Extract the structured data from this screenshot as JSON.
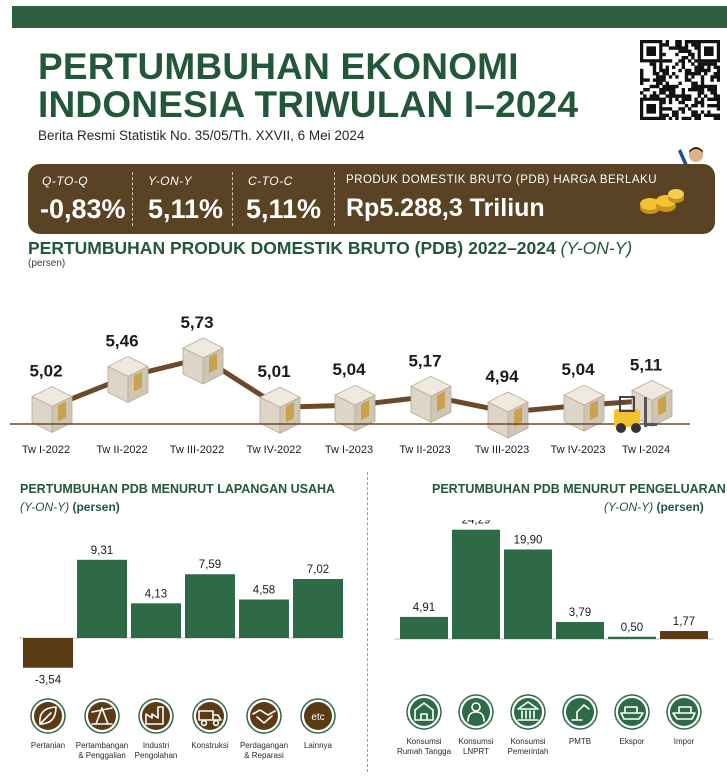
{
  "header": {
    "title_line1": "PERTUMBUHAN EKONOMI",
    "title_line2": "INDONESIA TRIWULAN I–2024",
    "subtitle": "Berita Resmi Statistik No. 35/05/Th. XXVII, 6 Mei 2024"
  },
  "headline": {
    "qtoq_label": "Q-TO-Q",
    "qtoq_value": "-0,83%",
    "yony_label": "Y-ON-Y",
    "yony_value": "5,11%",
    "ctoc_label": "C-TO-C",
    "ctoc_value": "5,11%",
    "pdb_label": "PRODUK DOMESTIK BRUTO (PDB) HARGA BERLAKU",
    "pdb_value": "Rp5.288,3 Triliun"
  },
  "colors": {
    "brand_green": "#23573a",
    "bar_green": "#2d6a45",
    "bar_brown": "#5b3a16",
    "line_brown": "#6a4a2a",
    "headline_bg": "#5a4325"
  },
  "chart_data": [
    {
      "type": "line",
      "title": "PERTUMBUHAN PRODUK DOMESTIK BRUTO (PDB) 2022–2024",
      "title_suffix": "(Y-ON-Y)",
      "ylabel": "(persen)",
      "categories": [
        "Tw I-2022",
        "Tw II-2022",
        "Tw  III-2022",
        "Tw IV-2022",
        "Tw I-2023",
        "Tw II-2023",
        "Tw III-2023",
        "Tw IV-2023",
        "Tw I-2024"
      ],
      "values": [
        5.02,
        5.46,
        5.73,
        5.01,
        5.04,
        5.17,
        4.94,
        5.04,
        5.11
      ],
      "labels": [
        "5,02",
        "5,46",
        "5,73",
        "5,01",
        "5,04",
        "5,17",
        "4,94",
        "5,04",
        "5,11"
      ],
      "markers": "box-icon"
    },
    {
      "type": "bar",
      "title": "PERTUMBUHAN PDB MENURUT LAPANGAN USAHA",
      "sub_italic": "(Y-ON-Y)",
      "sub_unit": "(persen)",
      "categories": [
        "Pertanian",
        "Pertambangan & Penggalian",
        "Industri Pengolahan",
        "Konstruksi",
        "Perdagangan & Reparasi",
        "Lainnya"
      ],
      "category_lines": [
        [
          "Pertanian"
        ],
        [
          "Pertambangan",
          "& Penggalian"
        ],
        [
          "Industri",
          "Pengolahan"
        ],
        [
          "Konstruksi"
        ],
        [
          "Perdagangan",
          "& Reparasi"
        ],
        [
          "Lainnya"
        ]
      ],
      "values": [
        -3.54,
        9.31,
        4.13,
        7.59,
        4.58,
        7.02
      ],
      "labels": [
        "-3,54",
        "9,31",
        "4,13",
        "7,59",
        "4,58",
        "7,02"
      ],
      "icons": [
        "leaf-icon",
        "mining-icon",
        "factory-icon",
        "truck-icon",
        "handshake-icon",
        "etc-icon"
      ],
      "etc_text": "etc"
    },
    {
      "type": "bar",
      "title": "PERTUMBUHAN PDB MENURUT PENGELUARAN",
      "sub_italic": "(Y-ON-Y)",
      "sub_unit": "(persen)",
      "categories": [
        "Konsumsi Rumah Tangga",
        "Konsumsi LNPRT",
        "Konsumsi Pemerintah",
        "PMTB",
        "Ekspor",
        "Impor"
      ],
      "category_lines": [
        [
          "Konsumsi",
          "Rumah Tangga"
        ],
        [
          "Konsumsi",
          "LNPRT"
        ],
        [
          "Konsumsi",
          "Pemerintah"
        ],
        [
          "PMTB"
        ],
        [
          "Ekspor"
        ],
        [
          "Impor"
        ]
      ],
      "values": [
        4.91,
        24.29,
        19.9,
        3.79,
        0.5,
        1.77
      ],
      "labels": [
        "4,91",
        "24,29",
        "19,90",
        "3,79",
        "0,50",
        "1,77"
      ],
      "icons": [
        "household-icon",
        "person-icon",
        "government-building-icon",
        "robot-arm-icon",
        "export-ship-icon",
        "import-ship-icon"
      ]
    }
  ]
}
